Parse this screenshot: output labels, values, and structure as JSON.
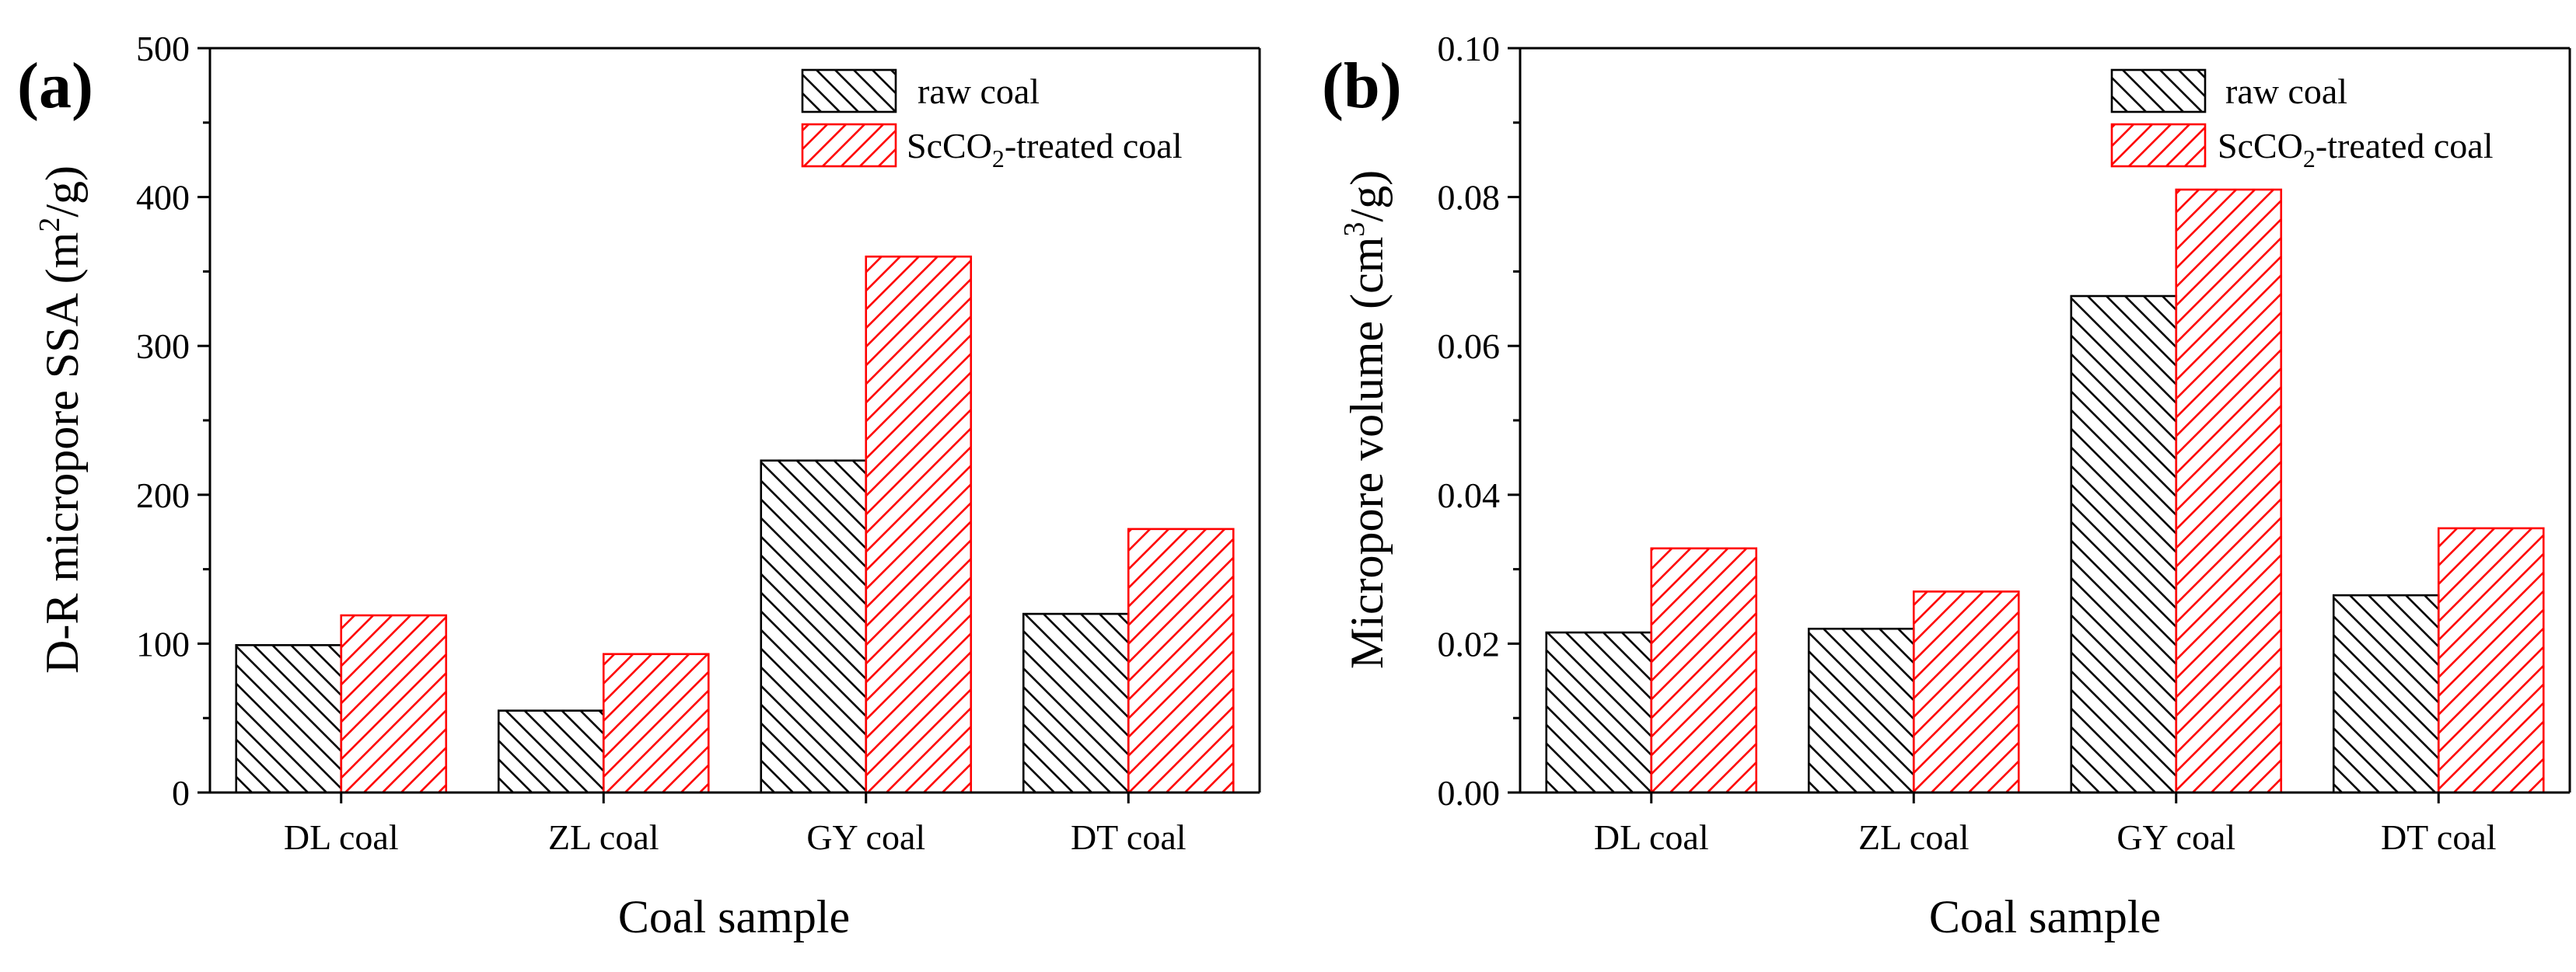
{
  "colors": {
    "series_0": "#000000",
    "series_1": "#ff0000",
    "background": "#ffffff"
  },
  "chart_data": [
    {
      "type": "bar",
      "panel_label": "(a)",
      "title": "",
      "categories": [
        "DL coal",
        "ZL coal",
        "GY coal",
        "DT coal"
      ],
      "series": [
        {
          "name": "raw coal",
          "hatch": "backslash",
          "values": [
            99,
            55,
            223,
            120
          ]
        },
        {
          "name": "ScCO2-treated coal",
          "hatch": "slash",
          "values": [
            119,
            93,
            360,
            177
          ]
        }
      ],
      "xlabel": "Coal sample",
      "ylabel": "D-R micropore  SSA (m2/g)",
      "ylabel_parts": {
        "pre": "D-R micropore  SSA (m",
        "sup": "2",
        "post": "/g)"
      },
      "ylim": [
        0,
        500
      ],
      "yticks": [
        "0",
        "100",
        "200",
        "300",
        "400",
        "500"
      ],
      "grid": false,
      "legend_position": "top-right"
    },
    {
      "type": "bar",
      "panel_label": "(b)",
      "title": "",
      "categories": [
        "DL coal",
        "ZL coal",
        "GY coal",
        "DT coal"
      ],
      "series": [
        {
          "name": "raw coal",
          "hatch": "backslash",
          "values": [
            0.0215,
            0.022,
            0.0667,
            0.0265
          ]
        },
        {
          "name": "ScCO2-treated coal",
          "hatch": "slash",
          "values": [
            0.0328,
            0.027,
            0.081,
            0.0355
          ]
        }
      ],
      "xlabel": "Coal sample",
      "ylabel": "Micropore volume (cm3/g)",
      "ylabel_parts": {
        "pre": "Micropore volume (cm",
        "sup": "3",
        "post": "/g)"
      },
      "ylim": [
        0,
        0.1
      ],
      "yticks": [
        "0.00",
        "0.02",
        "0.04",
        "0.06",
        "0.08",
        "0.10"
      ],
      "grid": false,
      "legend_position": "top-right"
    }
  ],
  "legend_entries": [
    {
      "name": "raw coal",
      "text": "raw coal"
    },
    {
      "name": "ScCO2-treated coal",
      "pre": "ScCO",
      "sub": "2",
      "post": "-treated coal"
    }
  ]
}
